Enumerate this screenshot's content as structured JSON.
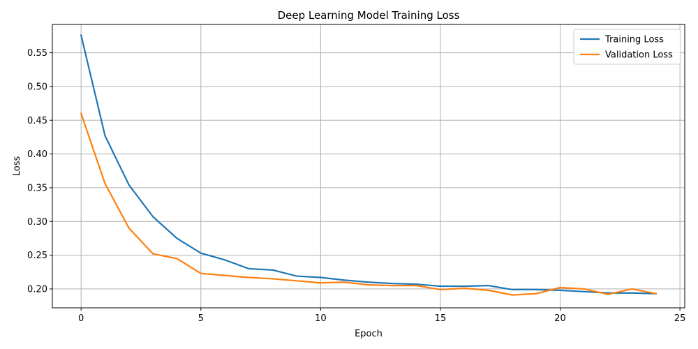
{
  "chart_data": {
    "type": "line",
    "title": "Deep Learning Model Training Loss",
    "xlabel": "Epoch",
    "ylabel": "Loss",
    "xlim": [
      -1.2,
      25.2
    ],
    "ylim": [
      0.172,
      0.592
    ],
    "xticks": [
      0,
      5,
      10,
      15,
      20,
      25
    ],
    "yticks": [
      0.2,
      0.25,
      0.3,
      0.35,
      0.4,
      0.45,
      0.5,
      0.55
    ],
    "xtick_labels": [
      "0",
      "5",
      "10",
      "15",
      "20",
      "25"
    ],
    "ytick_labels": [
      "0.20",
      "0.25",
      "0.30",
      "0.35",
      "0.40",
      "0.45",
      "0.50",
      "0.55"
    ],
    "grid": true,
    "legend_position": "top-right",
    "x": [
      0,
      1,
      2,
      3,
      4,
      5,
      6,
      7,
      8,
      9,
      10,
      11,
      12,
      13,
      14,
      15,
      16,
      17,
      18,
      19,
      20,
      21,
      22,
      23,
      24
    ],
    "series": [
      {
        "name": "Training Loss",
        "color": "#1f77b4",
        "values": [
          0.576,
          0.427,
          0.354,
          0.307,
          0.275,
          0.253,
          0.243,
          0.23,
          0.228,
          0.219,
          0.217,
          0.213,
          0.21,
          0.208,
          0.207,
          0.204,
          0.204,
          0.205,
          0.199,
          0.199,
          0.198,
          0.196,
          0.194,
          0.194,
          0.193
        ]
      },
      {
        "name": "Validation Loss",
        "color": "#ff7f0e",
        "values": [
          0.46,
          0.356,
          0.29,
          0.252,
          0.245,
          0.223,
          0.22,
          0.217,
          0.215,
          0.212,
          0.209,
          0.21,
          0.206,
          0.205,
          0.205,
          0.199,
          0.201,
          0.198,
          0.191,
          0.193,
          0.202,
          0.2,
          0.192,
          0.2,
          0.193
        ]
      }
    ]
  }
}
